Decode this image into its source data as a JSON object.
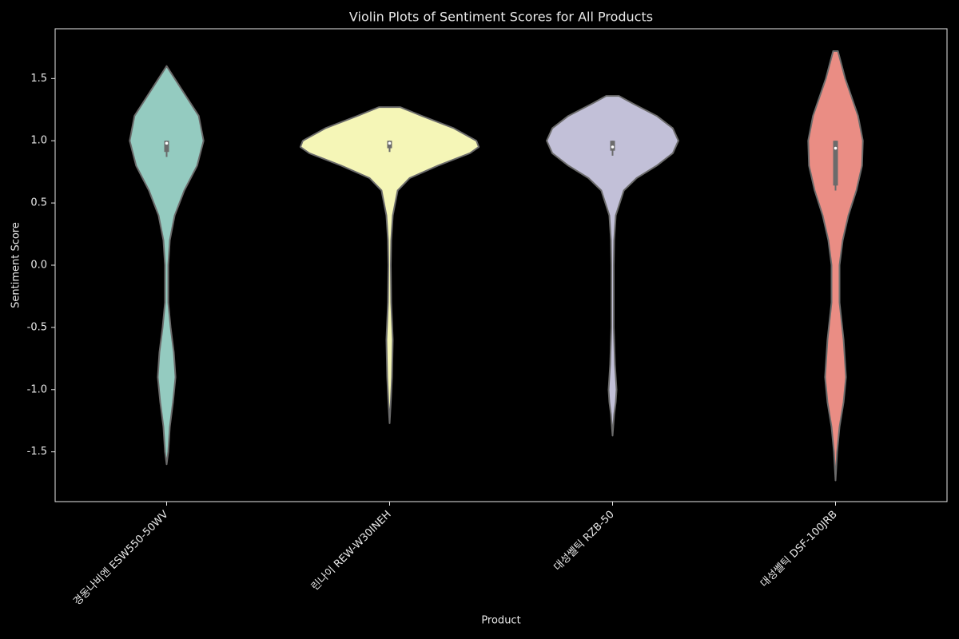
{
  "chart_data": {
    "type": "violin",
    "title": "Violin Plots of Sentiment Scores for All Products",
    "xlabel": "Product",
    "ylabel": "Sentiment Score",
    "categories": [
      "경동나비엔 ESW550-50WV",
      "린나이 REW-W30INEH",
      "대성쎌틱 RZB-50",
      "대성쎌틱 DSF-100JRB"
    ],
    "ylim": [
      -1.9,
      1.9
    ],
    "yticks": [
      {
        "value": -1.5,
        "label": "-1.5"
      },
      {
        "value": -1.0,
        "label": "-1.0"
      },
      {
        "value": -0.5,
        "label": "-0.5"
      },
      {
        "value": 0.0,
        "label": "0.0"
      },
      {
        "value": 0.5,
        "label": "0.5"
      },
      {
        "value": 1.0,
        "label": "1.0"
      },
      {
        "value": 1.5,
        "label": "1.5"
      }
    ],
    "edge_color": "#6b6b6b",
    "violins": [
      {
        "color": "#94cbc0",
        "density_y": [
          1.6,
          1.4,
          1.2,
          1.0,
          0.8,
          0.6,
          0.4,
          0.2,
          0.0,
          -0.3,
          -0.5,
          -0.7,
          -0.9,
          -1.1,
          -1.3,
          -1.5,
          -1.6
        ],
        "density": [
          0,
          20,
          40,
          46,
          38,
          22,
          10,
          4,
          2,
          2,
          5,
          9,
          11,
          8,
          4,
          2,
          0
        ],
        "q1": 0.91,
        "median": 0.98,
        "q3": 1.0,
        "whisker_low": 0.87,
        "whisker_high": 1.0
      },
      {
        "color": "#f5f6b7",
        "density_y": [
          1.27,
          1.2,
          1.1,
          1.0,
          0.95,
          0.9,
          0.8,
          0.7,
          0.6,
          0.4,
          0.2,
          0.0,
          -0.3,
          -0.6,
          -0.9,
          -1.1,
          -1.27
        ],
        "density": [
          13,
          40,
          80,
          108,
          111,
          100,
          60,
          25,
          10,
          4,
          2,
          1.5,
          2,
          4,
          3,
          1.5,
          0
        ],
        "q1": 0.94,
        "median": 0.98,
        "q3": 1.0,
        "whisker_low": 0.91,
        "whisker_high": 1.0
      },
      {
        "color": "#c2c0d8",
        "density_y": [
          1.36,
          1.3,
          1.2,
          1.1,
          1.0,
          0.9,
          0.8,
          0.7,
          0.6,
          0.4,
          0.2,
          0.0,
          -0.5,
          -0.8,
          -1.0,
          -1.1,
          -1.2,
          -1.37
        ],
        "density": [
          8,
          25,
          55,
          75,
          82,
          75,
          55,
          30,
          14,
          4,
          2,
          1.5,
          1.5,
          3,
          5,
          4,
          2,
          0
        ],
        "q1": 0.92,
        "median": 0.95,
        "q3": 1.0,
        "whisker_low": 0.88,
        "whisker_high": 1.0
      },
      {
        "color": "#ea8d84",
        "density_y": [
          1.72,
          1.5,
          1.2,
          1.0,
          0.8,
          0.6,
          0.4,
          0.2,
          0.0,
          -0.3,
          -0.6,
          -0.9,
          -1.1,
          -1.3,
          -1.5,
          -1.73
        ],
        "density": [
          3,
          12,
          28,
          34,
          33,
          26,
          16,
          9,
          5,
          5,
          10,
          13,
          10,
          5,
          2,
          0
        ],
        "q1": 0.64,
        "median": 0.94,
        "q3": 1.0,
        "whisker_low": 0.6,
        "whisker_high": 1.0
      }
    ]
  }
}
